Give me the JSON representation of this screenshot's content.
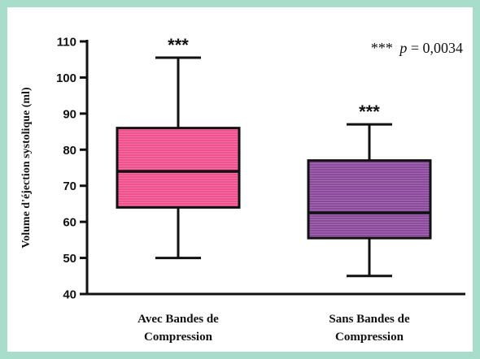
{
  "chart_data": {
    "type": "boxplot",
    "ylabel": "Volume d'éjection systolique (ml)",
    "ylim": [
      40,
      110
    ],
    "yticks": [
      40,
      50,
      60,
      70,
      80,
      90,
      100,
      110
    ],
    "categories": [
      "Avec Bandes de\nCompression",
      "Sans Bandes de\nCompression"
    ],
    "boxes": [
      {
        "min": 50,
        "q1": 64,
        "median": 74,
        "q3": 86,
        "max": 105.5,
        "color": "#f0518f",
        "significance": "***"
      },
      {
        "min": 45,
        "q1": 55.5,
        "median": 62.5,
        "q3": 77,
        "max": 87,
        "color": "#8b4a9c",
        "significance": "***"
      }
    ],
    "annotation": {
      "stars": "***",
      "italic": "p",
      "rest": " = 0,0034"
    },
    "grid": false
  }
}
